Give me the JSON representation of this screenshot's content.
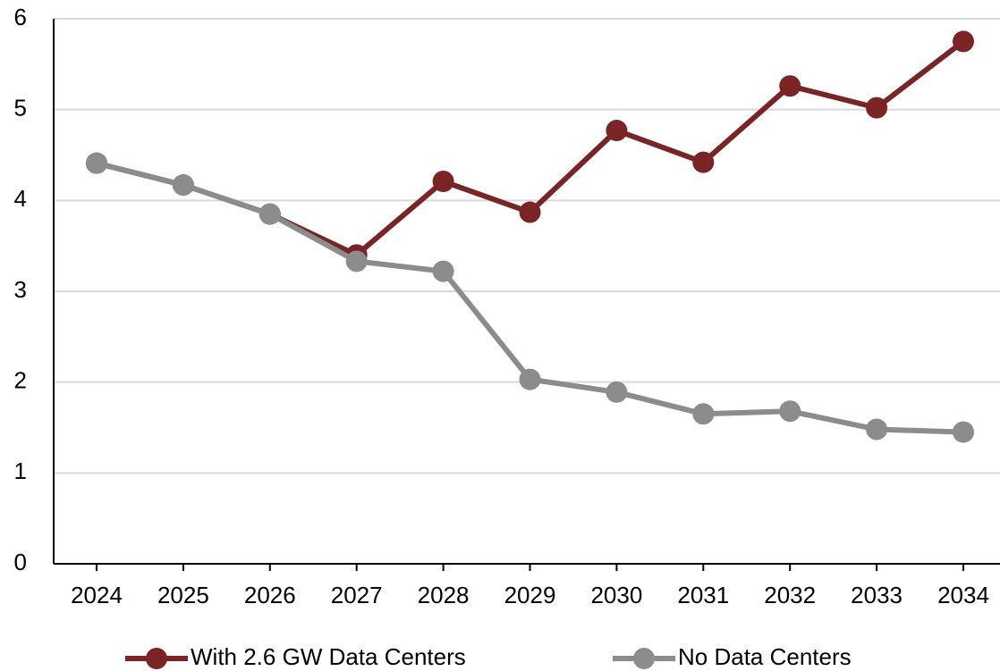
{
  "chart_data": {
    "type": "line",
    "categories": [
      "2024",
      "2025",
      "2026",
      "2027",
      "2028",
      "2029",
      "2030",
      "2031",
      "2032",
      "2033",
      "2034"
    ],
    "series": [
      {
        "name": "With 2.6 GW Data Centers",
        "color": "#7b2426",
        "values": [
          4.41,
          4.17,
          3.85,
          3.4,
          4.21,
          3.87,
          4.77,
          4.42,
          5.26,
          5.02,
          5.75
        ]
      },
      {
        "name": "No Data Centers",
        "color": "#8c8c8c",
        "values": [
          4.41,
          4.17,
          3.85,
          3.33,
          3.22,
          2.03,
          1.89,
          1.65,
          1.68,
          1.48,
          1.45
        ]
      }
    ],
    "ylim": [
      0,
      6
    ],
    "yticks": [
      0,
      1,
      2,
      3,
      4,
      5,
      6
    ],
    "grid": true,
    "legend": "bottom"
  }
}
